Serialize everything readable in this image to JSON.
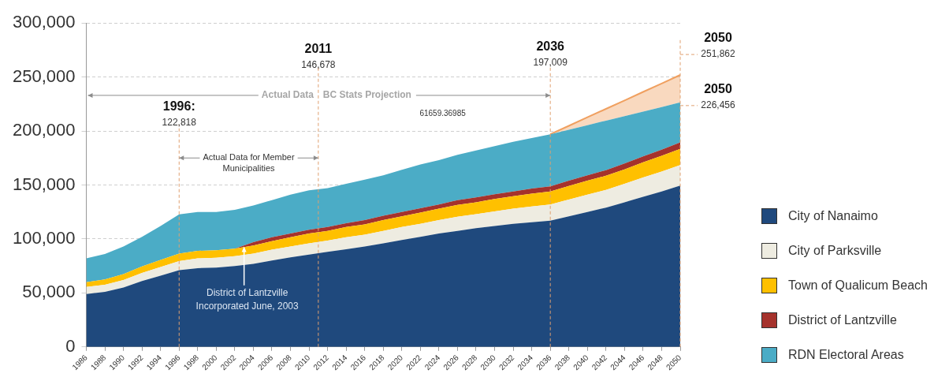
{
  "chart_data": {
    "type": "area",
    "stacked": true,
    "x": [
      1986,
      1988,
      1990,
      1992,
      1994,
      1996,
      1998,
      2000,
      2002,
      2004,
      2006,
      2008,
      2010,
      2012,
      2014,
      2016,
      2018,
      2020,
      2022,
      2024,
      2026,
      2028,
      2030,
      2032,
      2034,
      2036,
      2038,
      2040,
      2042,
      2044,
      2046,
      2048,
      2050
    ],
    "series": [
      {
        "name": "City of Nanaimo",
        "color": "#1f497d",
        "values": [
          49000,
          51000,
          55000,
          61000,
          66000,
          71000,
          73000,
          73500,
          75000,
          77000,
          80000,
          83000,
          85500,
          88000,
          90500,
          93000,
          96000,
          99000,
          102000,
          105000,
          107500,
          110000,
          112000,
          114000,
          115500,
          117000,
          121000,
          125000,
          129000,
          134000,
          139000,
          144000,
          149500
        ]
      },
      {
        "name": "City of Parksville",
        "color": "#eeece1",
        "values": [
          6500,
          6500,
          7000,
          7500,
          8000,
          8500,
          9000,
          9000,
          9000,
          9500,
          10000,
          10000,
          10500,
          10500,
          11000,
          11000,
          11500,
          12000,
          12000,
          12500,
          13000,
          13000,
          13500,
          14000,
          14500,
          15000,
          15500,
          16000,
          16500,
          17000,
          18000,
          18500,
          19000
        ]
      },
      {
        "name": "Town of Qualicum Beach",
        "color": "#ffc000",
        "values": [
          4500,
          5000,
          5500,
          6000,
          6500,
          7000,
          7000,
          7000,
          7000,
          7500,
          8000,
          8500,
          9000,
          9000,
          9500,
          9500,
          10000,
          10000,
          10500,
          10500,
          11000,
          11000,
          11500,
          11500,
          12000,
          12000,
          12500,
          13000,
          13000,
          13500,
          14000,
          14500,
          15000
        ]
      },
      {
        "name": "District of Lantzville",
        "color": "#a5322c",
        "values": [
          0,
          0,
          0,
          0,
          0,
          0,
          0,
          0,
          0,
          3000,
          3500,
          3500,
          3500,
          3500,
          3500,
          4000,
          4000,
          4000,
          4000,
          4000,
          4500,
          4500,
          4500,
          4500,
          4700,
          4700,
          5000,
          5000,
          5200,
          5400,
          5500,
          5700,
          5900
        ]
      },
      {
        "name": "RDN Electoral Areas",
        "color": "#4bacc6",
        "values": [
          22000,
          23500,
          25500,
          27500,
          31500,
          36300,
          36000,
          35500,
          36000,
          34000,
          34500,
          36000,
          36500,
          36000,
          36500,
          37500,
          37500,
          39000,
          40500,
          41000,
          42000,
          43500,
          44500,
          46000,
          46800,
          48300,
          47200,
          46400,
          45900,
          43900,
          41500,
          39500,
          37100
        ]
      },
      {
        "color": "#f0a060",
        "values": [
          null,
          null,
          null,
          null,
          null,
          null,
          null,
          null,
          null,
          null,
          null,
          null,
          null,
          null,
          null,
          null,
          null,
          null,
          null,
          null,
          null,
          null,
          null,
          null,
          null,
          0,
          3600,
          7300,
          10900,
          14500,
          18200,
          21800,
          25400
        ]
      }
    ],
    "xlim": [
      1986,
      2050
    ],
    "xticks": [
      1986,
      1988,
      1990,
      1992,
      1994,
      1996,
      1998,
      2000,
      2002,
      2004,
      2006,
      2008,
      2010,
      2012,
      2014,
      2016,
      2018,
      2020,
      2022,
      2024,
      2026,
      2028,
      2030,
      2032,
      2034,
      2036,
      2038,
      2040,
      2042,
      2044,
      2046,
      2048,
      2050
    ],
    "ylim": [
      0,
      300000
    ],
    "yticks": [
      {
        "value": 0,
        "label": "0"
      },
      {
        "value": 50000,
        "label": "50,000"
      },
      {
        "value": 100000,
        "label": "100,000"
      },
      {
        "value": 150000,
        "label": "150,000"
      },
      {
        "value": 200000,
        "label": "200,000"
      },
      {
        "value": 250000,
        "label": "250,000"
      },
      {
        "value": 300000,
        "label": "300,000"
      }
    ],
    "grid": "y",
    "legend": "right",
    "ref_lines": [
      {
        "axis": "x",
        "value": 1996,
        "color": "#e0a070",
        "line_style": "dashed"
      },
      {
        "axis": "x",
        "value": 2011,
        "color": "#e0a070",
        "line_style": "dashed"
      },
      {
        "axis": "x",
        "value": 2036,
        "color": "#e0a070",
        "line_style": "dashed"
      },
      {
        "axis": "x",
        "value": 2050,
        "color": "#e0a070",
        "line_style": "dashed"
      }
    ],
    "annotations": [
      "1996:\n122,818",
      "2011\n146,678",
      "2036\n197,009",
      {
        "text": "2050\n251,862",
        "x": 2050,
        "y": 251862
      },
      {
        "text": "2050\n226,456",
        "x": 2050,
        "y": 226456
      },
      "Actual Data",
      {
        "text": "BC Stats Projection",
        "x": 2036,
        "y": 233000
      },
      "61659.36985",
      {
        "text": "Actual Data for Member\nMunicipalities",
        "x": 1996,
        "y": 175000
      },
      {
        "text": "District of Lantzville\nIncorporated June, 2003",
        "x": 2003,
        "y": 93000
      }
    ]
  }
}
